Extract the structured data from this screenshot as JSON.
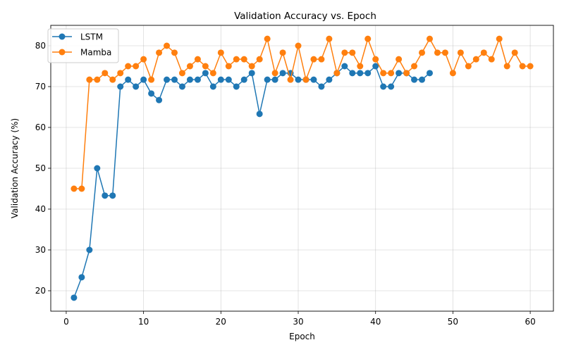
{
  "chart_data": {
    "type": "line",
    "title": "Validation Accuracy vs. Epoch",
    "xlabel": "Epoch",
    "ylabel": "Validation Accuracy (%)",
    "xlim": [
      -2,
      63
    ],
    "ylim": [
      15,
      85
    ],
    "xticks": [
      0,
      10,
      20,
      30,
      40,
      50,
      60
    ],
    "yticks": [
      20,
      30,
      40,
      50,
      60,
      70,
      80
    ],
    "grid": true,
    "legend_position": "top-left",
    "series": [
      {
        "name": "LSTM",
        "color": "#1f77b4",
        "marker": "circle",
        "x": [
          1,
          2,
          3,
          4,
          5,
          6,
          7,
          8,
          9,
          10,
          11,
          12,
          13,
          14,
          15,
          16,
          17,
          18,
          19,
          20,
          21,
          22,
          23,
          24,
          25,
          26,
          27,
          28,
          29,
          30,
          31,
          32,
          33,
          34,
          35,
          36,
          37,
          38,
          39,
          40,
          41,
          42,
          43,
          44,
          45,
          46,
          47
        ],
        "y": [
          18.3,
          23.3,
          30.0,
          50.0,
          43.3,
          43.3,
          70.0,
          71.7,
          70.0,
          71.7,
          68.3,
          66.7,
          71.7,
          71.7,
          70.0,
          71.7,
          71.7,
          73.3,
          70.0,
          71.7,
          71.7,
          70.0,
          71.7,
          73.3,
          63.3,
          71.7,
          71.7,
          73.3,
          73.3,
          71.7,
          71.7,
          71.7,
          70.0,
          71.7,
          73.3,
          75.0,
          73.3,
          73.3,
          73.3,
          75.0,
          70.0,
          70.0,
          73.3,
          73.3,
          71.7,
          71.7,
          73.3
        ]
      },
      {
        "name": "Mamba",
        "color": "#ff7f0e",
        "marker": "circle",
        "x": [
          1,
          2,
          3,
          4,
          5,
          6,
          7,
          8,
          9,
          10,
          11,
          12,
          13,
          14,
          15,
          16,
          17,
          18,
          19,
          20,
          21,
          22,
          23,
          24,
          25,
          26,
          27,
          28,
          29,
          30,
          31,
          32,
          33,
          34,
          35,
          36,
          37,
          38,
          39,
          40,
          41,
          42,
          43,
          44,
          45,
          46,
          47,
          48,
          49,
          50,
          51,
          52,
          53,
          54,
          55,
          56,
          57,
          58,
          59,
          60
        ],
        "y": [
          45.0,
          45.0,
          71.7,
          71.7,
          73.3,
          71.7,
          73.3,
          75.0,
          75.0,
          76.7,
          71.7,
          78.3,
          80.0,
          78.3,
          73.3,
          75.0,
          76.7,
          75.0,
          73.3,
          78.3,
          75.0,
          76.7,
          76.7,
          75.0,
          76.7,
          81.7,
          73.3,
          78.3,
          71.7,
          80.0,
          71.7,
          76.7,
          76.7,
          81.7,
          73.3,
          78.3,
          78.3,
          75.0,
          81.7,
          76.7,
          73.3,
          73.3,
          76.7,
          73.3,
          75.0,
          78.3,
          81.7,
          78.3,
          78.3,
          73.3,
          78.3,
          75.0,
          76.7,
          78.3,
          76.7,
          81.7,
          75.0,
          78.3,
          75.0,
          75.0
        ]
      }
    ]
  }
}
